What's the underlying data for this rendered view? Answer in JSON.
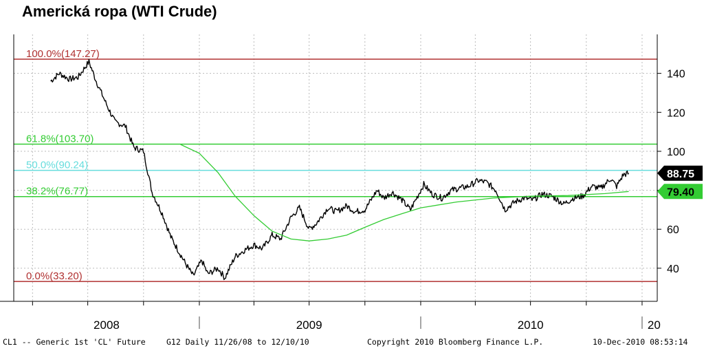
{
  "title": "Americká ropa (WTI Crude)",
  "colors": {
    "price_line": "#000000",
    "fib_red": "#b03030",
    "fib_green": "#33cc33",
    "fib_cyan": "#66dddd",
    "ma_line": "#33cc33",
    "grid": "#bbbbbb"
  },
  "chart_data": {
    "type": "line",
    "ylim": [
      23,
      160
    ],
    "y_ticks": [
      40,
      60,
      80,
      100,
      120,
      140
    ],
    "x_year_labels": [
      "2008",
      "2009",
      "2010",
      "20"
    ],
    "grid": true,
    "fib_levels": [
      {
        "label": "100.0%(147.27)",
        "value": 147.27,
        "color": "red"
      },
      {
        "label": "61.8%(103.70)",
        "value": 103.7,
        "color": "green"
      },
      {
        "label": "50.0%(90.24)",
        "value": 90.24,
        "color": "cyan"
      },
      {
        "label": "38.2%(76.77)",
        "value": 76.77,
        "color": "green"
      },
      {
        "label": "0.0%(33.20)",
        "value": 33.2,
        "color": "red"
      }
    ],
    "last_price_label": "88.75",
    "ma_label": "79.40",
    "series": [
      {
        "role": "price",
        "x": [
          "2008-05-01",
          "2008-05-15",
          "2008-06-01",
          "2008-06-15",
          "2008-07-03",
          "2008-07-15",
          "2008-08-01",
          "2008-08-15",
          "2008-09-01",
          "2008-09-15",
          "2008-10-01",
          "2008-10-15",
          "2008-11-01",
          "2008-11-15",
          "2008-12-01",
          "2008-12-10",
          "2008-12-22",
          "2009-01-05",
          "2009-01-15",
          "2009-02-01",
          "2009-02-12",
          "2009-03-01",
          "2009-03-15",
          "2009-04-01",
          "2009-04-15",
          "2009-05-01",
          "2009-05-15",
          "2009-06-01",
          "2009-06-15",
          "2009-07-01",
          "2009-07-13",
          "2009-08-01",
          "2009-08-15",
          "2009-09-01",
          "2009-09-15",
          "2009-10-01",
          "2009-10-21",
          "2009-11-01",
          "2009-11-15",
          "2009-12-01",
          "2009-12-15",
          "2010-01-06",
          "2010-01-20",
          "2010-02-05",
          "2010-02-20",
          "2010-03-05",
          "2010-03-20",
          "2010-04-06",
          "2010-04-20",
          "2010-05-05",
          "2010-05-20",
          "2010-06-05",
          "2010-06-20",
          "2010-07-05",
          "2010-07-20",
          "2010-08-05",
          "2010-08-25",
          "2010-09-10",
          "2010-09-25",
          "2010-10-10",
          "2010-10-25",
          "2010-11-10",
          "2010-11-20",
          "2010-12-01",
          "2010-12-10"
        ],
        "values": [
          136,
          140,
          137,
          138,
          146,
          136,
          124,
          115,
          113,
          102,
          100,
          79,
          68,
          56,
          47,
          42,
          36,
          44,
          37,
          40,
          35,
          46,
          49,
          52,
          50,
          57,
          55,
          66,
          71,
          60,
          63,
          71,
          69,
          72,
          69,
          70,
          80,
          76,
          79,
          75,
          70,
          83,
          78,
          76,
          80,
          81,
          82,
          85,
          84,
          80,
          70,
          74,
          76,
          75,
          78,
          77,
          73,
          76,
          77,
          82,
          81,
          86,
          82,
          88,
          88.75
        ]
      },
      {
        "role": "moving-average",
        "x": [
          "2008-12-01",
          "2009-01-01",
          "2009-02-01",
          "2009-03-01",
          "2009-04-01",
          "2009-05-01",
          "2009-06-01",
          "2009-07-01",
          "2009-08-01",
          "2009-09-01",
          "2009-10-01",
          "2009-11-01",
          "2009-12-01",
          "2010-01-01",
          "2010-03-01",
          "2010-05-01",
          "2010-07-01",
          "2010-09-01",
          "2010-11-01",
          "2010-12-10"
        ],
        "values": [
          103.5,
          99,
          89,
          77,
          67,
          59,
          55,
          54,
          55,
          57,
          61,
          65,
          68,
          71,
          74,
          76,
          77,
          77.3,
          78.3,
          79.4
        ]
      }
    ]
  },
  "footer": {
    "left": "CL1 -- Generic 1st 'CL' Future",
    "middle": "G12  Daily  11/26/08 to 12/10/10",
    "right_copy": "Copyright 2010 Bloomberg Finance L.P.",
    "timestamp": "10-Dec-2010 08:53:14"
  }
}
